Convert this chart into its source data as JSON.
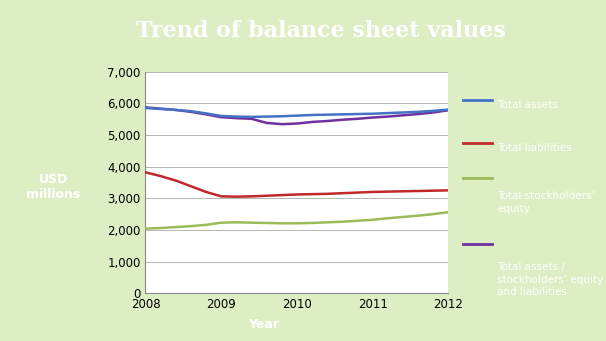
{
  "title": "Trend of balance sheet values",
  "xlabel": "Year",
  "ylabel": "USD\nmillions",
  "background_color": "#ddeec4",
  "plot_bg_color": "#ffffff",
  "title_bg_color": "#6a9a28",
  "title_text_color": "#ffffff",
  "years": [
    2008,
    2008.2,
    2008.4,
    2008.6,
    2008.8,
    2009,
    2009.2,
    2009.4,
    2009.6,
    2009.8,
    2010,
    2010.2,
    2010.4,
    2010.6,
    2010.8,
    2011,
    2011.2,
    2011.4,
    2011.6,
    2011.8,
    2012
  ],
  "total_assets": [
    5850,
    5820,
    5790,
    5750,
    5680,
    5600,
    5580,
    5570,
    5580,
    5590,
    5610,
    5630,
    5640,
    5650,
    5660,
    5670,
    5690,
    5710,
    5730,
    5760,
    5800
  ],
  "total_liabilities": [
    3820,
    3700,
    3560,
    3380,
    3200,
    3060,
    3050,
    3060,
    3080,
    3100,
    3120,
    3130,
    3140,
    3160,
    3180,
    3200,
    3210,
    3220,
    3230,
    3240,
    3250
  ],
  "total_equity": [
    2040,
    2060,
    2090,
    2120,
    2160,
    2230,
    2240,
    2230,
    2220,
    2210,
    2210,
    2220,
    2240,
    2260,
    2290,
    2320,
    2370,
    2410,
    2450,
    2500,
    2560
  ],
  "total_assets_equity": [
    5870,
    5830,
    5790,
    5730,
    5650,
    5560,
    5530,
    5510,
    5380,
    5340,
    5360,
    5410,
    5440,
    5480,
    5510,
    5550,
    5580,
    5620,
    5660,
    5710,
    5780
  ],
  "line_colors": {
    "total_assets": "#4472c4",
    "total_liabilities": "#c0282a",
    "total_equity": "#9bbb59",
    "total_assets_equity": "#7030a0"
  },
  "legend_labels": [
    "Total assets",
    "Total liabilities",
    "Total stockholders’\nequity",
    "Total assets /\nstockholders’ equity\nand liabilities"
  ],
  "ylim": [
    0,
    7000
  ],
  "yticks": [
    0,
    1000,
    2000,
    3000,
    4000,
    5000,
    6000,
    7000
  ],
  "xlabel_bg": "#6a9a28",
  "ylabel_bg": "#6a9a28",
  "legend_bg": "#7aaa30"
}
